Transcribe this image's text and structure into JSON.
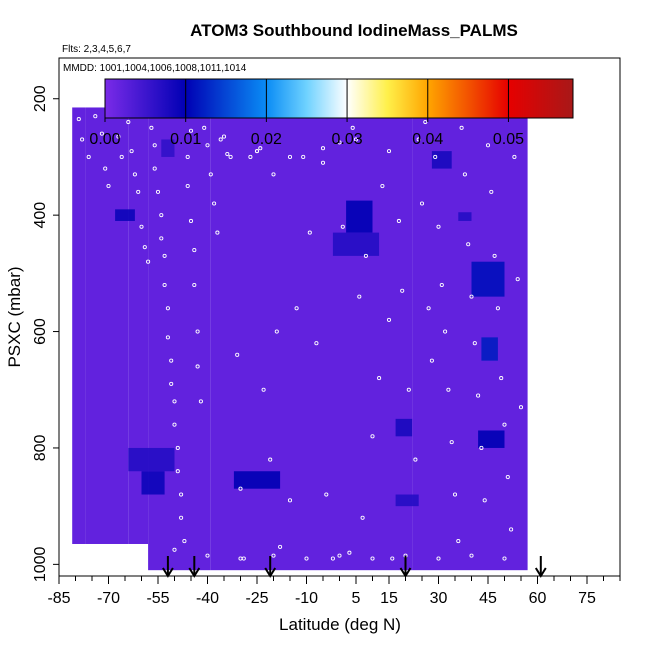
{
  "chart_data": {
    "type": "heatmap",
    "title": "ATOM3 Southbound IodineMass_PALMS",
    "flights_label": "Flts: 2,3,4,5,6,7",
    "dates_label": "MMDD: 1001,1004,1006,1008,1011,1014",
    "xlabel": "Latitude (deg N)",
    "ylabel": "PSXC (mbar)",
    "xlim": [
      -85,
      85
    ],
    "ylim": [
      1020,
      130
    ],
    "y_reversed": true,
    "x_ticks": [
      -85,
      -70,
      -55,
      -40,
      -25,
      -10,
      5,
      15,
      30,
      45,
      60,
      75
    ],
    "x_tick_labels": [
      "-85",
      "-70",
      "-55",
      "-40",
      "-25",
      "-10",
      "5",
      "15",
      "30",
      "45",
      "60",
      "75"
    ],
    "y_ticks": [
      200,
      400,
      600,
      800,
      1000
    ],
    "y_tick_labels": [
      "200",
      "400",
      "600",
      "800",
      "1000"
    ],
    "colorbar": {
      "min": 0.0,
      "max": 0.058,
      "ticks": [
        0.0,
        0.01,
        0.02,
        0.03,
        0.04,
        0.05
      ],
      "tick_labels": [
        "0.00",
        "0.01",
        "0.02",
        "0.03",
        "0.04",
        "0.05"
      ],
      "stops": [
        {
          "v": 0.0,
          "color": "#7a2be8"
        },
        {
          "v": 0.01,
          "color": "#0000b4"
        },
        {
          "v": 0.02,
          "color": "#0a8cf5"
        },
        {
          "v": 0.025,
          "color": "#6fd2ff"
        },
        {
          "v": 0.03,
          "color": "#ffffff"
        },
        {
          "v": 0.035,
          "color": "#fff04a"
        },
        {
          "v": 0.04,
          "color": "#ffa500"
        },
        {
          "v": 0.05,
          "color": "#e60000"
        },
        {
          "v": 0.058,
          "color": "#a81818"
        }
      ]
    },
    "background_value": 0.002,
    "coverage": [
      {
        "lat": [
          -81,
          -77
        ],
        "p": [
          215,
          965
        ]
      },
      {
        "lat": [
          -77,
          -64
        ],
        "p": [
          215,
          965
        ]
      },
      {
        "lat": [
          -64,
          -58
        ],
        "p": [
          215,
          965
        ]
      },
      {
        "lat": [
          -58,
          -39
        ],
        "p": [
          185,
          1010
        ]
      },
      {
        "lat": [
          -39,
          22
        ],
        "p": [
          182,
          1010
        ]
      },
      {
        "lat": [
          22,
          30
        ],
        "p": [
          215,
          1010
        ]
      },
      {
        "lat": [
          30,
          57
        ],
        "p": [
          215,
          1010
        ]
      }
    ],
    "enhancements": [
      {
        "lat": [
          -68,
          -62
        ],
        "p": [
          390,
          410
        ],
        "value": 0.009
      },
      {
        "lat": [
          -60,
          -53
        ],
        "p": [
          840,
          880
        ],
        "value": 0.009
      },
      {
        "lat": [
          -64,
          -50
        ],
        "p": [
          800,
          840
        ],
        "value": 0.007
      },
      {
        "lat": [
          -32,
          -18
        ],
        "p": [
          840,
          870
        ],
        "value": 0.01
      },
      {
        "lat": [
          2,
          10
        ],
        "p": [
          375,
          430
        ],
        "value": 0.01
      },
      {
        "lat": [
          -2,
          12
        ],
        "p": [
          430,
          470
        ],
        "value": 0.007
      },
      {
        "lat": [
          17,
          22
        ],
        "p": [
          750,
          780
        ],
        "value": 0.008
      },
      {
        "lat": [
          17,
          24
        ],
        "p": [
          880,
          900
        ],
        "value": 0.007
      },
      {
        "lat": [
          40,
          50
        ],
        "p": [
          480,
          540
        ],
        "value": 0.011
      },
      {
        "lat": [
          43,
          48
        ],
        "p": [
          610,
          650
        ],
        "value": 0.012
      },
      {
        "lat": [
          42,
          50
        ],
        "p": [
          770,
          800
        ],
        "value": 0.01
      },
      {
        "lat": [
          28,
          34
        ],
        "p": [
          290,
          320
        ],
        "value": 0.008
      },
      {
        "lat": [
          -54,
          -50
        ],
        "p": [
          270,
          300
        ],
        "value": 0.006
      },
      {
        "lat": [
          36,
          40
        ],
        "p": [
          395,
          410
        ],
        "value": 0.007
      }
    ],
    "sounding_latitudes": [
      -52,
      -44,
      -21,
      20,
      61
    ],
    "sample_points": [
      [
        -79,
        235
      ],
      [
        -78,
        270
      ],
      [
        -76,
        300
      ],
      [
        -74,
        230
      ],
      [
        -72,
        260
      ],
      [
        -71,
        320
      ],
      [
        -70,
        350
      ],
      [
        -68,
        230
      ],
      [
        -67,
        265
      ],
      [
        -66,
        300
      ],
      [
        -64,
        240
      ],
      [
        -63,
        290
      ],
      [
        -62,
        330
      ],
      [
        -61,
        360
      ],
      [
        -60,
        420
      ],
      [
        -59,
        455
      ],
      [
        -58,
        480
      ],
      [
        -57,
        250
      ],
      [
        -56,
        280
      ],
      [
        -56,
        320
      ],
      [
        -55,
        360
      ],
      [
        -54,
        400
      ],
      [
        -54,
        440
      ],
      [
        -53,
        470
      ],
      [
        -53,
        520
      ],
      [
        -52,
        560
      ],
      [
        -52,
        610
      ],
      [
        -51,
        650
      ],
      [
        -51,
        690
      ],
      [
        -50,
        720
      ],
      [
        -50,
        760
      ],
      [
        -49,
        800
      ],
      [
        -49,
        840
      ],
      [
        -48,
        880
      ],
      [
        -48,
        920
      ],
      [
        -47,
        960
      ],
      [
        -46,
        300
      ],
      [
        -46,
        350
      ],
      [
        -45,
        410
      ],
      [
        -44,
        460
      ],
      [
        -44,
        520
      ],
      [
        -43,
        600
      ],
      [
        -43,
        660
      ],
      [
        -42,
        720
      ],
      [
        -41,
        250
      ],
      [
        -40,
        280
      ],
      [
        -39,
        330
      ],
      [
        -38,
        380
      ],
      [
        -37,
        430
      ],
      [
        -36,
        270
      ],
      [
        -34,
        295
      ],
      [
        -33,
        300
      ],
      [
        -31,
        640
      ],
      [
        -30,
        870
      ],
      [
        -29,
        990
      ],
      [
        -27,
        300
      ],
      [
        -25,
        290
      ],
      [
        -24,
        285
      ],
      [
        -23,
        700
      ],
      [
        -21,
        820
      ],
      [
        -20,
        330
      ],
      [
        -19,
        600
      ],
      [
        -18,
        970
      ],
      [
        -17,
        200
      ],
      [
        -15,
        890
      ],
      [
        -13,
        560
      ],
      [
        -11,
        300
      ],
      [
        -9,
        430
      ],
      [
        -7,
        620
      ],
      [
        -5,
        310
      ],
      [
        -4,
        880
      ],
      [
        -2,
        990
      ],
      [
        0,
        275
      ],
      [
        1,
        420
      ],
      [
        3,
        980
      ],
      [
        4,
        250
      ],
      [
        6,
        540
      ],
      [
        7,
        920
      ],
      [
        8,
        470
      ],
      [
        10,
        780
      ],
      [
        12,
        680
      ],
      [
        13,
        350
      ],
      [
        15,
        580
      ],
      [
        16,
        990
      ],
      [
        18,
        410
      ],
      [
        19,
        530
      ],
      [
        21,
        700
      ],
      [
        23,
        820
      ],
      [
        24,
        270
      ],
      [
        25,
        380
      ],
      [
        26,
        240
      ],
      [
        27,
        560
      ],
      [
        28,
        650
      ],
      [
        29,
        300
      ],
      [
        30,
        420
      ],
      [
        31,
        520
      ],
      [
        32,
        600
      ],
      [
        33,
        700
      ],
      [
        34,
        790
      ],
      [
        35,
        880
      ],
      [
        36,
        960
      ],
      [
        37,
        250
      ],
      [
        38,
        330
      ],
      [
        39,
        450
      ],
      [
        40,
        540
      ],
      [
        41,
        620
      ],
      [
        42,
        710
      ],
      [
        43,
        800
      ],
      [
        44,
        890
      ],
      [
        45,
        280
      ],
      [
        46,
        360
      ],
      [
        47,
        470
      ],
      [
        48,
        560
      ],
      [
        49,
        680
      ],
      [
        50,
        760
      ],
      [
        51,
        850
      ],
      [
        52,
        940
      ],
      [
        53,
        300
      ],
      [
        54,
        510
      ],
      [
        55,
        730
      ],
      [
        -77,
        980
      ],
      [
        -60,
        980
      ],
      [
        -50,
        975
      ],
      [
        -40,
        985
      ],
      [
        -30,
        990
      ],
      [
        -20,
        985
      ],
      [
        -10,
        990
      ],
      [
        0,
        985
      ],
      [
        10,
        990
      ],
      [
        20,
        985
      ],
      [
        30,
        990
      ],
      [
        40,
        985
      ],
      [
        50,
        990
      ],
      [
        -45,
        255
      ],
      [
        -35,
        265
      ],
      [
        -25,
        290
      ],
      [
        -15,
        300
      ],
      [
        -5,
        285
      ],
      [
        5,
        270
      ],
      [
        15,
        290
      ]
    ]
  }
}
